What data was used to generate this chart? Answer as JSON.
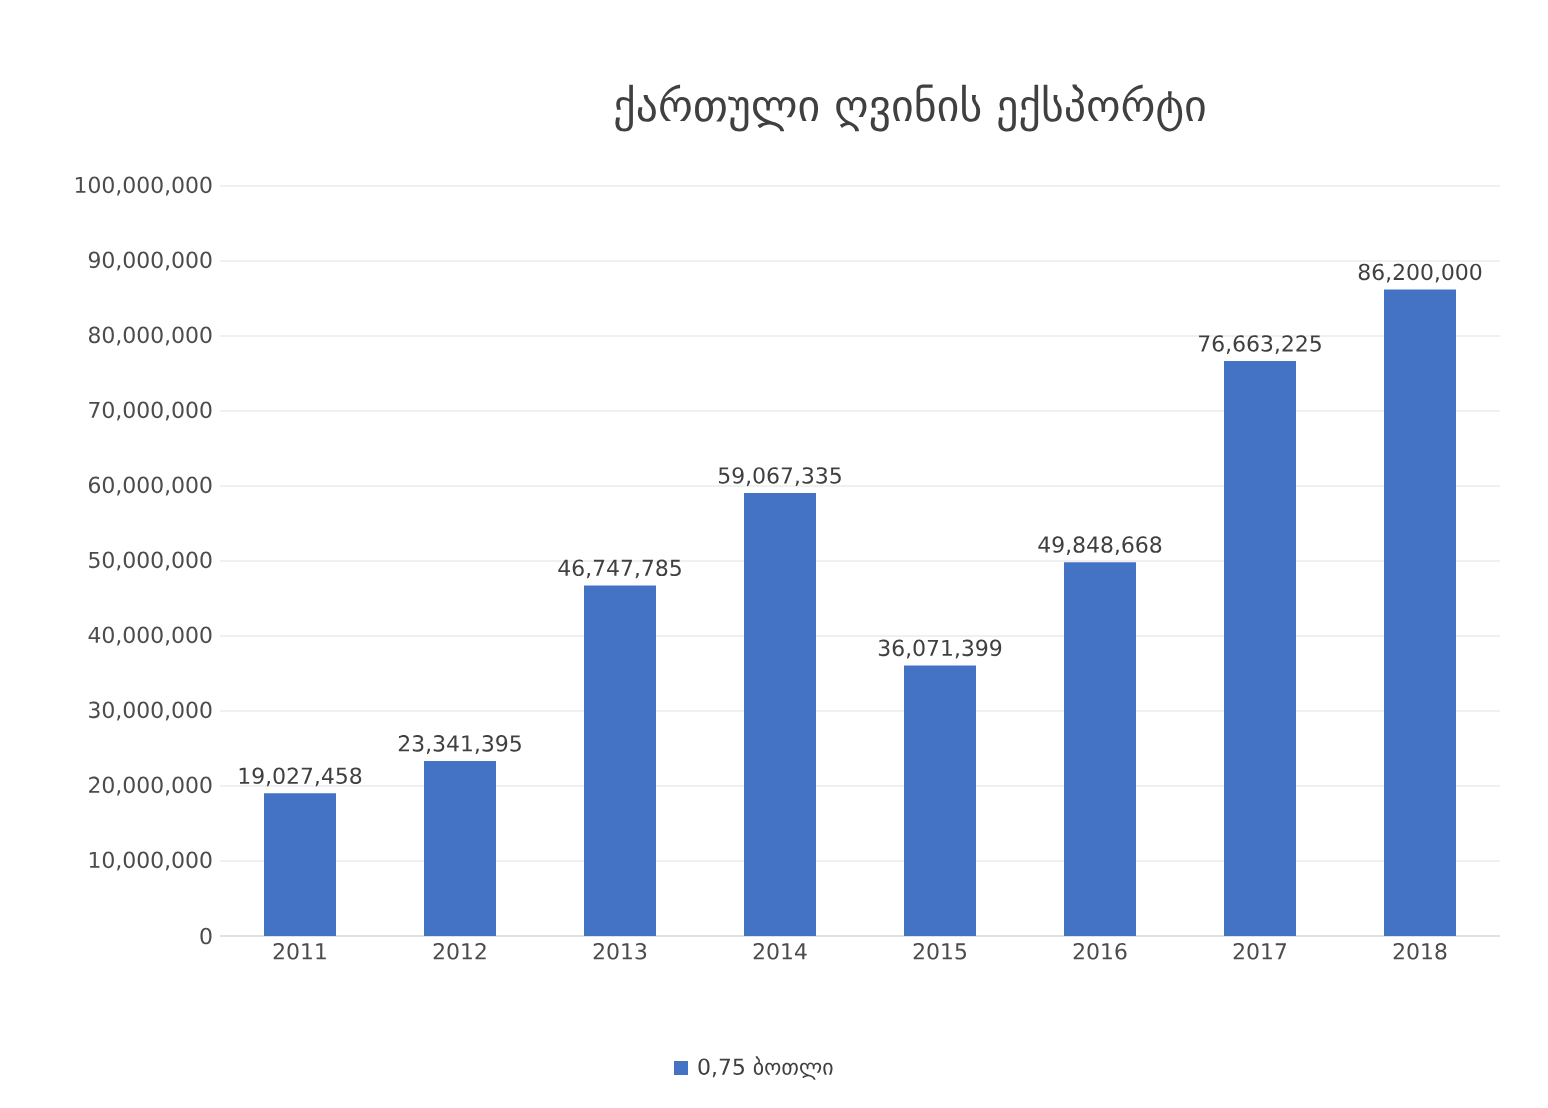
{
  "chart_data": {
    "type": "bar",
    "title": "ქართული ღვინის ექსპორტი",
    "categories": [
      "2011",
      "2012",
      "2013",
      "2014",
      "2015",
      "2016",
      "2017",
      "2018"
    ],
    "series": [
      {
        "name": "0,75 ბოთლი",
        "color": "#4472c4",
        "values": [
          19027458,
          23341395,
          46747785,
          59067335,
          36071399,
          49848668,
          76663225,
          86200000
        ],
        "value_labels": [
          "19,027,458",
          "23,341,395",
          "46,747,785",
          "59,067,335",
          "36,071,399",
          "49,848,668",
          "76,663,225",
          "86,200,000"
        ]
      }
    ],
    "ylim": [
      0,
      100000000
    ],
    "yticks": [
      {
        "value": 0,
        "label": "0"
      },
      {
        "value": 10000000,
        "label": "10,000,000"
      },
      {
        "value": 20000000,
        "label": "20,000,000"
      },
      {
        "value": 30000000,
        "label": "30,000,000"
      },
      {
        "value": 40000000,
        "label": "40,000,000"
      },
      {
        "value": 50000000,
        "label": "50,000,000"
      },
      {
        "value": 60000000,
        "label": "60,000,000"
      },
      {
        "value": 70000000,
        "label": "70,000,000"
      },
      {
        "value": 80000000,
        "label": "80,000,000"
      },
      {
        "value": 90000000,
        "label": "90,000,000"
      },
      {
        "value": 100000000,
        "label": "100,000,000"
      }
    ],
    "grid": "y",
    "legend": "bottom"
  }
}
